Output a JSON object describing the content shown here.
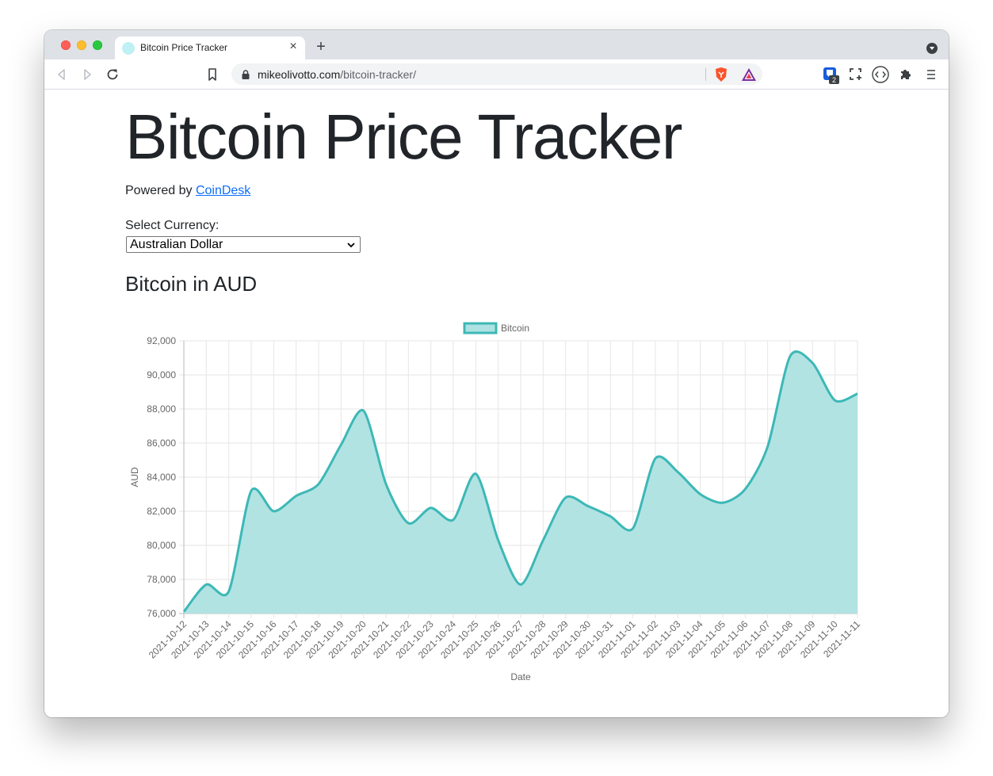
{
  "browser": {
    "tab_title": "Bitcoin Price Tracker",
    "tab_close": "×",
    "new_tab": "+",
    "url_host": "mikeolivotto.com",
    "url_path": "/bitcoin-tracker/",
    "extension_badge": "2"
  },
  "page": {
    "title": "Bitcoin Price Tracker",
    "powered_prefix": "Powered by ",
    "powered_link": "CoinDesk",
    "select_label": "Select Currency:",
    "select_value": "Australian Dollar",
    "chart_heading": "Bitcoin in AUD"
  },
  "colors": {
    "series_line": "#3cb8b6",
    "series_fill": "#aee2e2",
    "link": "#0d6efd",
    "text": "#212529"
  },
  "chart_data": {
    "type": "area",
    "title": "",
    "xlabel": "Date",
    "ylabel": "AUD",
    "ylim": [
      76000,
      92000
    ],
    "yticks": [
      "76,000",
      "78,000",
      "80,000",
      "82,000",
      "84,000",
      "86,000",
      "88,000",
      "90,000",
      "92,000"
    ],
    "grid": true,
    "legend_position": "top",
    "x": [
      "2021-10-12",
      "2021-10-13",
      "2021-10-14",
      "2021-10-15",
      "2021-10-16",
      "2021-10-17",
      "2021-10-18",
      "2021-10-19",
      "2021-10-20",
      "2021-10-21",
      "2021-10-22",
      "2021-10-23",
      "2021-10-24",
      "2021-10-25",
      "2021-10-26",
      "2021-10-27",
      "2021-10-28",
      "2021-10-29",
      "2021-10-30",
      "2021-10-31",
      "2021-11-01",
      "2021-11-02",
      "2021-11-03",
      "2021-11-04",
      "2021-11-05",
      "2021-11-06",
      "2021-11-07",
      "2021-11-08",
      "2021-11-09",
      "2021-11-10",
      "2021-11-11"
    ],
    "series": [
      {
        "name": "Bitcoin",
        "values": [
          76100,
          77700,
          77300,
          83200,
          82000,
          82900,
          83600,
          85900,
          87900,
          83600,
          81300,
          82200,
          81500,
          84200,
          80300,
          77700,
          80300,
          82800,
          82300,
          81700,
          81000,
          85100,
          84300,
          83000,
          82500,
          83300,
          85800,
          91100,
          90700,
          88500,
          88900
        ]
      }
    ]
  }
}
